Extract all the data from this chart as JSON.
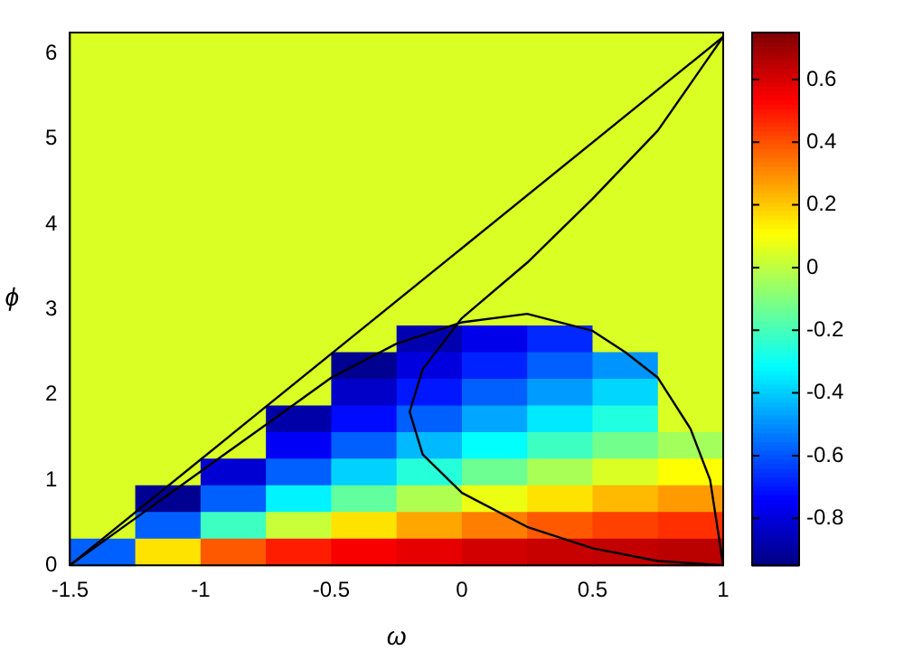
{
  "chart_data": {
    "type": "heatmap",
    "xlabel": "ω",
    "ylabel": "ϕ",
    "x": [
      -1.375,
      -1.125,
      -0.875,
      -0.625,
      -0.375,
      -0.125,
      0.125,
      0.375,
      0.625,
      0.875
    ],
    "y": [
      6.09375,
      5.78125,
      5.46875,
      5.15625,
      4.84375,
      4.53125,
      4.21875,
      3.90625,
      3.59375,
      3.28125,
      2.96875,
      2.65625,
      2.34375,
      2.03125,
      1.71875,
      1.40625,
      1.09375,
      0.78125,
      0.46875,
      0.15625
    ],
    "xlim": [
      -1.5,
      1
    ],
    "ylim": [
      0,
      6.25
    ],
    "xticks": [
      -1.5,
      -1,
      -0.5,
      0,
      0.5,
      1
    ],
    "yticks": [
      0,
      1,
      2,
      3,
      4,
      5,
      6
    ],
    "clim": [
      -0.95,
      0.75
    ],
    "cticks": [
      -0.8,
      -0.6,
      -0.4,
      -0.2,
      0,
      0.2,
      0.4,
      0.6
    ],
    "cells": [
      [
        0.05,
        0.05,
        0.05,
        0.05,
        0.05,
        0.05,
        0.05,
        0.05,
        0.05,
        0.05
      ],
      [
        0.05,
        0.05,
        0.05,
        0.05,
        0.05,
        0.05,
        0.05,
        0.05,
        0.05,
        0.05
      ],
      [
        0.05,
        0.05,
        0.05,
        0.05,
        0.05,
        0.05,
        0.05,
        0.05,
        0.05,
        0.05
      ],
      [
        0.05,
        0.05,
        0.05,
        0.05,
        0.05,
        0.05,
        0.05,
        0.05,
        0.05,
        0.05
      ],
      [
        0.05,
        0.05,
        0.05,
        0.05,
        0.05,
        0.05,
        0.05,
        0.05,
        0.05,
        0.05
      ],
      [
        0.05,
        0.05,
        0.05,
        0.05,
        0.05,
        0.05,
        0.05,
        0.05,
        0.05,
        0.05
      ],
      [
        0.05,
        0.05,
        0.05,
        0.05,
        0.05,
        0.05,
        0.05,
        0.05,
        0.05,
        0.05
      ],
      [
        0.05,
        0.05,
        0.05,
        0.05,
        0.05,
        0.05,
        0.05,
        0.05,
        0.05,
        0.05
      ],
      [
        0.05,
        0.05,
        0.05,
        0.05,
        0.05,
        0.05,
        0.05,
        0.05,
        0.05,
        0.05
      ],
      [
        0.05,
        0.05,
        0.05,
        0.05,
        0.05,
        0.05,
        0.05,
        0.05,
        0.05,
        0.05
      ],
      [
        0.05,
        0.05,
        0.05,
        0.05,
        0.05,
        0.05,
        0.05,
        0.05,
        0.05,
        0.05
      ],
      [
        0.05,
        0.05,
        0.05,
        0.05,
        0.05,
        -0.87,
        -0.77,
        -0.67,
        0.05,
        0.05
      ],
      [
        0.05,
        0.05,
        0.05,
        0.05,
        -0.92,
        -0.79,
        -0.68,
        -0.58,
        -0.49,
        0.05
      ],
      [
        0.05,
        0.05,
        0.05,
        0.05,
        -0.83,
        -0.7,
        -0.58,
        -0.48,
        -0.38,
        0.05
      ],
      [
        0.05,
        0.05,
        0.05,
        -0.88,
        -0.72,
        -0.58,
        -0.46,
        -0.35,
        -0.26,
        0.05
      ],
      [
        0.05,
        0.05,
        0.05,
        -0.75,
        -0.58,
        -0.43,
        -0.31,
        -0.21,
        -0.12,
        -0.04
      ],
      [
        0.05,
        0.05,
        -0.81,
        -0.58,
        -0.39,
        -0.25,
        -0.13,
        -0.03,
        0.05,
        0.11
      ],
      [
        0.05,
        -0.92,
        -0.58,
        -0.33,
        -0.15,
        -0.02,
        0.08,
        0.16,
        0.23,
        0.28
      ],
      [
        0.05,
        -0.58,
        -0.21,
        0.02,
        0.16,
        0.26,
        0.33,
        0.39,
        0.43,
        0.46
      ],
      [
        -0.58,
        0.16,
        0.39,
        0.49,
        0.55,
        0.58,
        0.61,
        0.63,
        0.64,
        0.65
      ]
    ],
    "series": [
      {
        "type": "line",
        "color": "#000000",
        "x": [
          -1.5,
          1
        ],
        "values": [
          0,
          6.2
        ]
      },
      {
        "type": "line",
        "color": "#000000",
        "x": [
          1,
          0.75,
          0.5,
          0.25,
          0,
          -0.15,
          -0.2,
          -0.15,
          0,
          0.25,
          0.5,
          0.75,
          1
        ],
        "values": [
          6.2,
          5.1,
          4.3,
          3.55,
          2.9,
          2.3,
          1.8,
          1.3,
          0.85,
          0.45,
          0.2,
          0.05,
          0
        ]
      },
      {
        "type": "line",
        "color": "#000000",
        "x": [
          -1.5,
          -1.25,
          -1,
          -0.75,
          -0.5,
          -0.25,
          0,
          0.25,
          0.5,
          0.625,
          0.75,
          0.875,
          0.95,
          1
        ],
        "values": [
          0,
          0.55,
          1.1,
          1.65,
          2.2,
          2.6,
          2.85,
          2.95,
          2.75,
          2.5,
          2.2,
          1.6,
          1,
          0
        ]
      }
    ],
    "legend": false,
    "grid": false,
    "marker": "none"
  }
}
